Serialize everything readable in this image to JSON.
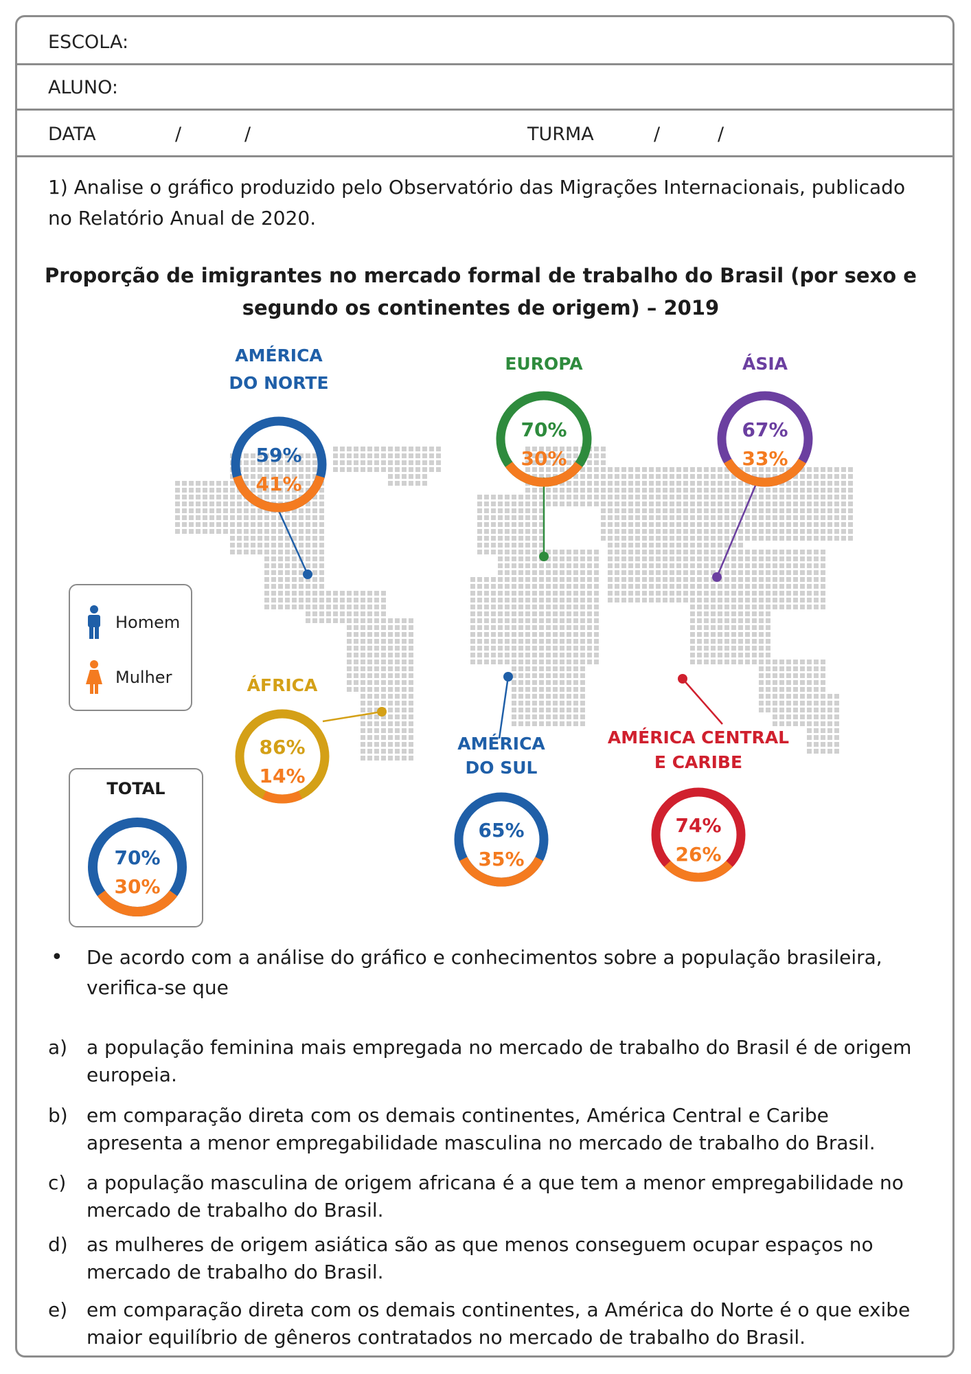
{
  "header": {
    "escola_label": "ESCOLA:",
    "aluno_label": "ALUNO:",
    "data_label": "DATA",
    "turma_label": "TURMA",
    "slash": "/"
  },
  "question": {
    "text": "1) Analise o gráfico produzido pelo Observatório das Migrações Internacionais, publicado no Relatório Anual de 2020."
  },
  "chart_title": "Proporção de imigrantes no mercado formal de trabalho do Brasil (por sexo e segundo os continentes de origem) – 2019",
  "colors": {
    "homem": "#1f5fa8",
    "mulher": "#f47b20",
    "america_norte": "#1f5fa8",
    "europa": "#2e8b3d",
    "asia": "#6b3fa0",
    "africa": "#d4a017",
    "america_sul": "#1f5fa8",
    "america_central": "#d0202e",
    "map": "#d0d0d0"
  },
  "legend": {
    "homem": "Homem",
    "mulher": "Mulher"
  },
  "chart_data": {
    "type": "pie",
    "series_labels": [
      "Homem",
      "Mulher"
    ],
    "regions": [
      {
        "id": "america_norte",
        "name_lines": [
          "AMÉRICA",
          "DO NORTE"
        ],
        "homem": 59,
        "mulher": 41,
        "homem_label": "59%",
        "mulher_label": "41%"
      },
      {
        "id": "europa",
        "name_lines": [
          "EUROPA"
        ],
        "homem": 70,
        "mulher": 30,
        "homem_label": "70%",
        "mulher_label": "30%"
      },
      {
        "id": "asia",
        "name_lines": [
          "ÁSIA"
        ],
        "homem": 67,
        "mulher": 33,
        "homem_label": "67%",
        "mulher_label": "33%"
      },
      {
        "id": "africa",
        "name_lines": [
          "ÁFRICA"
        ],
        "homem": 86,
        "mulher": 14,
        "homem_label": "86%",
        "mulher_label": "14%"
      },
      {
        "id": "america_sul",
        "name_lines": [
          "AMÉRICA",
          "DO SUL"
        ],
        "homem": 65,
        "mulher": 35,
        "homem_label": "65%",
        "mulher_label": "35%"
      },
      {
        "id": "america_central",
        "name_lines": [
          "AMÉRICA CENTRAL",
          "E CARIBE"
        ],
        "homem": 74,
        "mulher": 26,
        "homem_label": "74%",
        "mulher_label": "26%"
      }
    ],
    "total": {
      "title": "TOTAL",
      "homem": 70,
      "mulher": 30,
      "homem_label": "70%",
      "mulher_label": "30%"
    }
  },
  "stem": {
    "bullet": "•",
    "text": "De acordo com a análise do gráfico e conhecimentos sobre a população brasileira, verifica-se que"
  },
  "options": [
    {
      "letter": "a)",
      "text": "a população feminina mais empregada no mercado de trabalho do Brasil é de origem europeia."
    },
    {
      "letter": "b)",
      "text": "em comparação direta com os demais continentes, América Central e Caribe apresenta a menor empregabilidade masculina no mercado de trabalho do Brasil."
    },
    {
      "letter": "c)",
      "text": "a população masculina de origem africana é a que tem a menor empregabilidade no mercado de trabalho do Brasil."
    },
    {
      "letter": "d)",
      "text": "as mulheres de origem asiática são as que menos conseguem ocupar espaços no mercado de trabalho do Brasil."
    },
    {
      "letter": "e)",
      "text": "em comparação direta com os demais continentes, a América do Norte é o que exibe maior equilíbrio de gêneros contratados no mercado de trabalho do Brasil."
    }
  ]
}
